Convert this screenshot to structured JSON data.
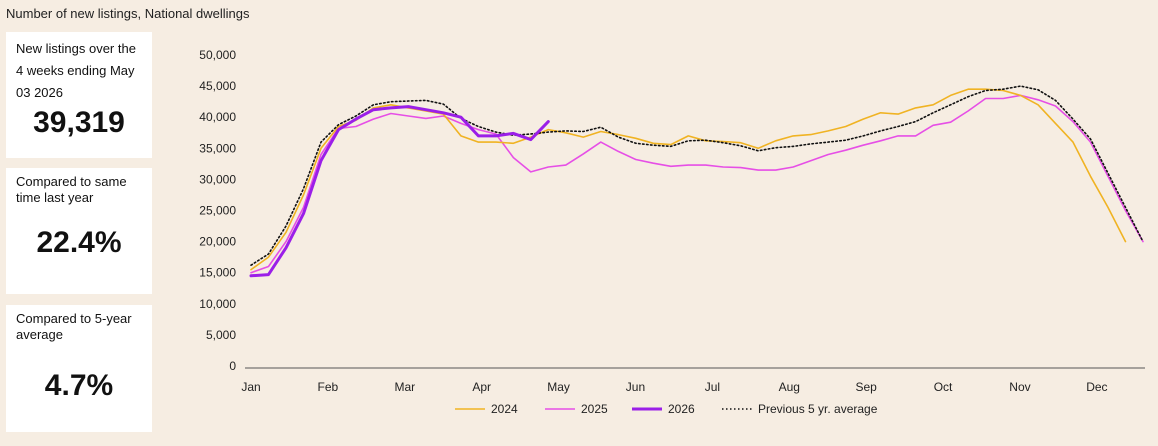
{
  "title": "Number of new listings, National dwellings",
  "cards": [
    {
      "label": "New listings over the 4 weeks ending May 03 2026",
      "value": "39,319"
    },
    {
      "label": "Compared to same time last year",
      "value": "22.4%"
    },
    {
      "label": "Compared to 5-year average",
      "value": "4.7%"
    }
  ],
  "colors": {
    "s2024": "#f0b323",
    "s2025": "#e64fe6",
    "s2026": "#9b1fe8",
    "avg": "#111111",
    "background": "#f6ede2"
  },
  "chart_data": {
    "type": "line",
    "title": "Number of new listings, National dwellings",
    "xlabel": "",
    "ylabel": "",
    "ylim": [
      0,
      50000
    ],
    "yticks": [
      "0",
      "5,000",
      "10,000",
      "15,000",
      "20,000",
      "25,000",
      "30,000",
      "35,000",
      "40,000",
      "45,000",
      "50,000"
    ],
    "months": [
      "Jan",
      "Feb",
      "Mar",
      "Apr",
      "May",
      "Jun",
      "Jul",
      "Aug",
      "Sep",
      "Oct",
      "Nov",
      "Dec"
    ],
    "x_unit": "week of year",
    "grid": false,
    "legend": "bottom",
    "series": [
      {
        "name": "2024",
        "key": "s2024",
        "dash": false,
        "width": 1.6,
        "points": [
          [
            1,
            15500
          ],
          [
            2,
            17500
          ],
          [
            3,
            21500
          ],
          [
            4,
            27500
          ],
          [
            5,
            35000
          ],
          [
            6,
            38500
          ],
          [
            7,
            39500
          ],
          [
            8,
            41500
          ],
          [
            9,
            42000
          ],
          [
            10,
            41500
          ],
          [
            11,
            41000
          ],
          [
            12,
            40500
          ],
          [
            13,
            37000
          ],
          [
            14,
            36000
          ],
          [
            15,
            36000
          ],
          [
            16,
            35800
          ],
          [
            17,
            36800
          ],
          [
            18,
            38000
          ],
          [
            19,
            37500
          ],
          [
            20,
            36800
          ],
          [
            21,
            37700
          ],
          [
            22,
            37200
          ],
          [
            23,
            36600
          ],
          [
            24,
            35800
          ],
          [
            25,
            35600
          ],
          [
            26,
            37000
          ],
          [
            27,
            36200
          ],
          [
            28,
            36100
          ],
          [
            29,
            35900
          ],
          [
            30,
            35000
          ],
          [
            31,
            36200
          ],
          [
            32,
            37000
          ],
          [
            33,
            37200
          ],
          [
            34,
            37800
          ],
          [
            35,
            38500
          ],
          [
            36,
            39700
          ],
          [
            37,
            40700
          ],
          [
            38,
            40500
          ],
          [
            39,
            41500
          ],
          [
            40,
            42000
          ],
          [
            41,
            43500
          ],
          [
            42,
            44500
          ],
          [
            43,
            44500
          ],
          [
            44,
            44300
          ],
          [
            45,
            43500
          ],
          [
            46,
            42000
          ],
          [
            47,
            39000
          ],
          [
            48,
            36000
          ],
          [
            49,
            30500
          ],
          [
            50,
            25500
          ],
          [
            51,
            20000
          ]
        ]
      },
      {
        "name": "2025",
        "key": "s2025",
        "dash": false,
        "width": 1.6,
        "points": [
          [
            1,
            15000
          ],
          [
            2,
            16000
          ],
          [
            3,
            20000
          ],
          [
            4,
            25500
          ],
          [
            5,
            34000
          ],
          [
            6,
            38200
          ],
          [
            7,
            38500
          ],
          [
            8,
            39700
          ],
          [
            9,
            40600
          ],
          [
            10,
            40200
          ],
          [
            11,
            39800
          ],
          [
            12,
            40200
          ],
          [
            13,
            39000
          ],
          [
            14,
            38000
          ],
          [
            15,
            37300
          ],
          [
            16,
            33500
          ],
          [
            17,
            31200
          ],
          [
            18,
            32000
          ],
          [
            19,
            32300
          ],
          [
            20,
            34100
          ],
          [
            21,
            36000
          ],
          [
            22,
            34500
          ],
          [
            23,
            33200
          ],
          [
            24,
            32600
          ],
          [
            25,
            32100
          ],
          [
            26,
            32300
          ],
          [
            27,
            32300
          ],
          [
            28,
            32000
          ],
          [
            29,
            31900
          ],
          [
            30,
            31500
          ],
          [
            31,
            31500
          ],
          [
            32,
            32000
          ],
          [
            33,
            33000
          ],
          [
            34,
            34000
          ],
          [
            35,
            34700
          ],
          [
            36,
            35500
          ],
          [
            37,
            36200
          ],
          [
            38,
            37000
          ],
          [
            39,
            37000
          ],
          [
            40,
            38700
          ],
          [
            41,
            39200
          ],
          [
            42,
            41000
          ],
          [
            43,
            43000
          ],
          [
            44,
            43000
          ],
          [
            45,
            43500
          ],
          [
            46,
            42800
          ],
          [
            47,
            41800
          ],
          [
            48,
            39300
          ],
          [
            49,
            36000
          ],
          [
            50,
            30500
          ],
          [
            51,
            25000
          ],
          [
            52,
            20000
          ]
        ]
      },
      {
        "name": "2026",
        "key": "s2026",
        "dash": false,
        "width": 3,
        "points": [
          [
            1,
            14500
          ],
          [
            2,
            14700
          ],
          [
            3,
            19000
          ],
          [
            4,
            24500
          ],
          [
            5,
            33000
          ],
          [
            6,
            38000
          ],
          [
            7,
            39700
          ],
          [
            8,
            41200
          ],
          [
            9,
            41500
          ],
          [
            10,
            41700
          ],
          [
            11,
            41200
          ],
          [
            12,
            40700
          ],
          [
            13,
            40000
          ],
          [
            14,
            37000
          ],
          [
            15,
            37000
          ],
          [
            16,
            37400
          ],
          [
            17,
            36400
          ],
          [
            18,
            39300
          ]
        ]
      },
      {
        "name": "Previous 5 yr. average",
        "key": "avg",
        "dash": true,
        "width": 1.6,
        "points": [
          [
            1,
            16200
          ],
          [
            2,
            18000
          ],
          [
            3,
            22500
          ],
          [
            4,
            28500
          ],
          [
            5,
            36000
          ],
          [
            6,
            38800
          ],
          [
            7,
            40200
          ],
          [
            8,
            42000
          ],
          [
            9,
            42500
          ],
          [
            10,
            42600
          ],
          [
            11,
            42700
          ],
          [
            12,
            42100
          ],
          [
            13,
            39800
          ],
          [
            14,
            38500
          ],
          [
            15,
            37600
          ],
          [
            16,
            37100
          ],
          [
            17,
            37300
          ],
          [
            18,
            37600
          ],
          [
            19,
            37800
          ],
          [
            20,
            37700
          ],
          [
            21,
            38400
          ],
          [
            22,
            36800
          ],
          [
            23,
            35800
          ],
          [
            24,
            35500
          ],
          [
            25,
            35300
          ],
          [
            26,
            36200
          ],
          [
            27,
            36300
          ],
          [
            28,
            35900
          ],
          [
            29,
            35400
          ],
          [
            30,
            34600
          ],
          [
            31,
            35100
          ],
          [
            32,
            35300
          ],
          [
            33,
            35700
          ],
          [
            34,
            36000
          ],
          [
            35,
            36300
          ],
          [
            36,
            37000
          ],
          [
            37,
            37800
          ],
          [
            38,
            38500
          ],
          [
            39,
            39300
          ],
          [
            40,
            40700
          ],
          [
            41,
            42000
          ],
          [
            42,
            43300
          ],
          [
            43,
            44300
          ],
          [
            44,
            44500
          ],
          [
            45,
            45000
          ],
          [
            46,
            44400
          ],
          [
            47,
            42700
          ],
          [
            48,
            39700
          ],
          [
            49,
            36500
          ],
          [
            50,
            31000
          ],
          [
            51,
            25500
          ],
          [
            52,
            20000
          ]
        ]
      }
    ]
  }
}
